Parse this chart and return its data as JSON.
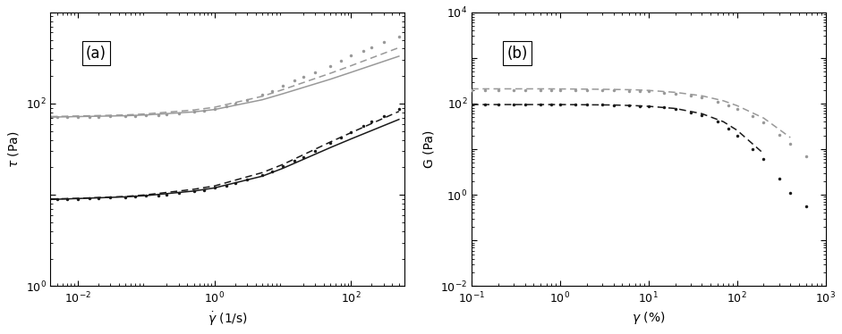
{
  "panel_a": {
    "label": "(a)",
    "xlabel": "$\\dot{\\gamma}$ (1/s)",
    "ylabel": "$\\tau$ (Pa)",
    "xlim": [
      0.004,
      600.0
    ],
    "ylim": [
      1.0,
      1000.0
    ],
    "carbopol_A_dots_x": [
      0.005,
      0.007,
      0.01,
      0.015,
      0.02,
      0.03,
      0.05,
      0.07,
      0.1,
      0.15,
      0.2,
      0.3,
      0.5,
      0.7,
      1.0,
      1.5,
      2.0,
      3.0,
      5.0,
      7.0,
      10,
      15,
      20,
      30,
      50,
      70,
      100,
      150,
      200,
      300,
      500
    ],
    "carbopol_A_dots_y": [
      9.0,
      9.0,
      9.0,
      9.1,
      9.2,
      9.3,
      9.4,
      9.5,
      9.7,
      9.9,
      10.1,
      10.4,
      10.9,
      11.3,
      11.9,
      12.7,
      13.4,
      14.7,
      16.5,
      18.1,
      20.5,
      23.5,
      26.0,
      30.5,
      37.0,
      42.5,
      49.0,
      57.0,
      63.0,
      73.0,
      87.0
    ],
    "carbopol_A_solid_x": [
      0.004,
      0.01,
      0.05,
      0.1,
      0.5,
      1.0,
      5.0,
      10,
      50,
      100,
      500
    ],
    "carbopol_A_solid_y": [
      8.9,
      9.1,
      9.5,
      9.8,
      11.0,
      11.9,
      16.0,
      19.5,
      33.0,
      41.0,
      67.0
    ],
    "carbopol_A_dashed_x": [
      0.004,
      0.01,
      0.05,
      0.1,
      0.5,
      1.0,
      5.0,
      10,
      50,
      100,
      500
    ],
    "carbopol_A_dashed_y": [
      9.0,
      9.15,
      9.6,
      10.0,
      11.5,
      12.5,
      17.5,
      21.5,
      38.0,
      48.0,
      82.0
    ],
    "carbopol_B_dots_x": [
      0.005,
      0.007,
      0.01,
      0.015,
      0.02,
      0.03,
      0.05,
      0.07,
      0.1,
      0.15,
      0.2,
      0.3,
      0.5,
      0.7,
      1.0,
      1.5,
      2.0,
      3.0,
      5.0,
      7.0,
      10,
      15,
      20,
      30,
      50,
      70,
      100,
      150,
      200,
      300,
      500
    ],
    "carbopol_B_dots_y": [
      72,
      72,
      72,
      72,
      72,
      72.5,
      73,
      73.5,
      74,
      75,
      76,
      78,
      81,
      84,
      88,
      94,
      100,
      110,
      125,
      137,
      155,
      178,
      195,
      220,
      260,
      295,
      335,
      380,
      415,
      470,
      545
    ],
    "carbopol_B_solid_x": [
      0.004,
      0.01,
      0.05,
      0.1,
      0.5,
      1.0,
      5.0,
      10,
      50,
      100,
      500
    ],
    "carbopol_B_solid_y": [
      71,
      72,
      73.5,
      75,
      81,
      86,
      110,
      128,
      185,
      220,
      330
    ],
    "carbopol_B_dashed_x": [
      0.004,
      0.01,
      0.05,
      0.1,
      0.5,
      1.0,
      5.0,
      10,
      50,
      100,
      500
    ],
    "carbopol_B_dashed_y": [
      72,
      73,
      75,
      77,
      85,
      91,
      120,
      142,
      215,
      260,
      410
    ],
    "color_A": "#1a1a1a",
    "color_B": "#999999"
  },
  "panel_b": {
    "label": "(b)",
    "xlabel": "$\\gamma$ (%)",
    "ylabel": "G (Pa)",
    "xlim": [
      0.1,
      1000
    ],
    "ylim": [
      0.01,
      10000.0
    ],
    "carbopol_A_dots_x": [
      0.1,
      0.14,
      0.2,
      0.3,
      0.4,
      0.6,
      0.8,
      1.0,
      1.5,
      2.0,
      3.0,
      4.0,
      6.0,
      8.0,
      10,
      15,
      20,
      30,
      40,
      60,
      80,
      100,
      150,
      200,
      300,
      400,
      600
    ],
    "carbopol_A_dots_y": [
      95,
      95,
      95,
      95,
      95,
      95,
      95,
      95,
      95,
      95,
      94,
      93,
      91,
      89,
      87,
      82,
      76,
      64,
      55,
      40,
      28,
      20,
      10,
      6.0,
      2.3,
      1.1,
      0.55
    ],
    "carbopol_A_dashed_x": [
      0.1,
      0.2,
      0.4,
      0.7,
      1.0,
      2.0,
      4.0,
      7.0,
      10,
      20,
      40,
      70,
      100,
      200
    ],
    "carbopol_A_dashed_y": [
      95,
      95,
      95,
      95,
      95,
      94,
      93,
      90,
      87,
      78,
      60,
      40,
      26,
      8.0
    ],
    "carbopol_B_dots_x": [
      0.1,
      0.14,
      0.2,
      0.3,
      0.4,
      0.6,
      0.8,
      1.0,
      1.5,
      2.0,
      3.0,
      4.0,
      6.0,
      8.0,
      10,
      15,
      20,
      30,
      40,
      60,
      80,
      100,
      150,
      200,
      300,
      400,
      600
    ],
    "carbopol_B_dots_y": [
      200,
      200,
      200,
      200,
      200,
      200,
      200,
      200,
      199,
      198,
      196,
      194,
      191,
      188,
      184,
      175,
      167,
      151,
      137,
      111,
      92,
      77,
      52,
      38,
      21,
      13,
      7.0
    ],
    "carbopol_B_dashed_x": [
      0.1,
      0.2,
      0.4,
      0.7,
      1.0,
      2.0,
      4.0,
      7.0,
      10,
      20,
      40,
      70,
      100,
      200,
      400
    ],
    "carbopol_B_dashed_y": [
      210,
      210,
      210,
      210,
      209,
      207,
      204,
      200,
      194,
      176,
      148,
      115,
      90,
      48,
      18
    ],
    "color_A": "#1a1a1a",
    "color_B": "#999999"
  },
  "figsize": [
    9.41,
    3.74
  ],
  "dpi": 100
}
